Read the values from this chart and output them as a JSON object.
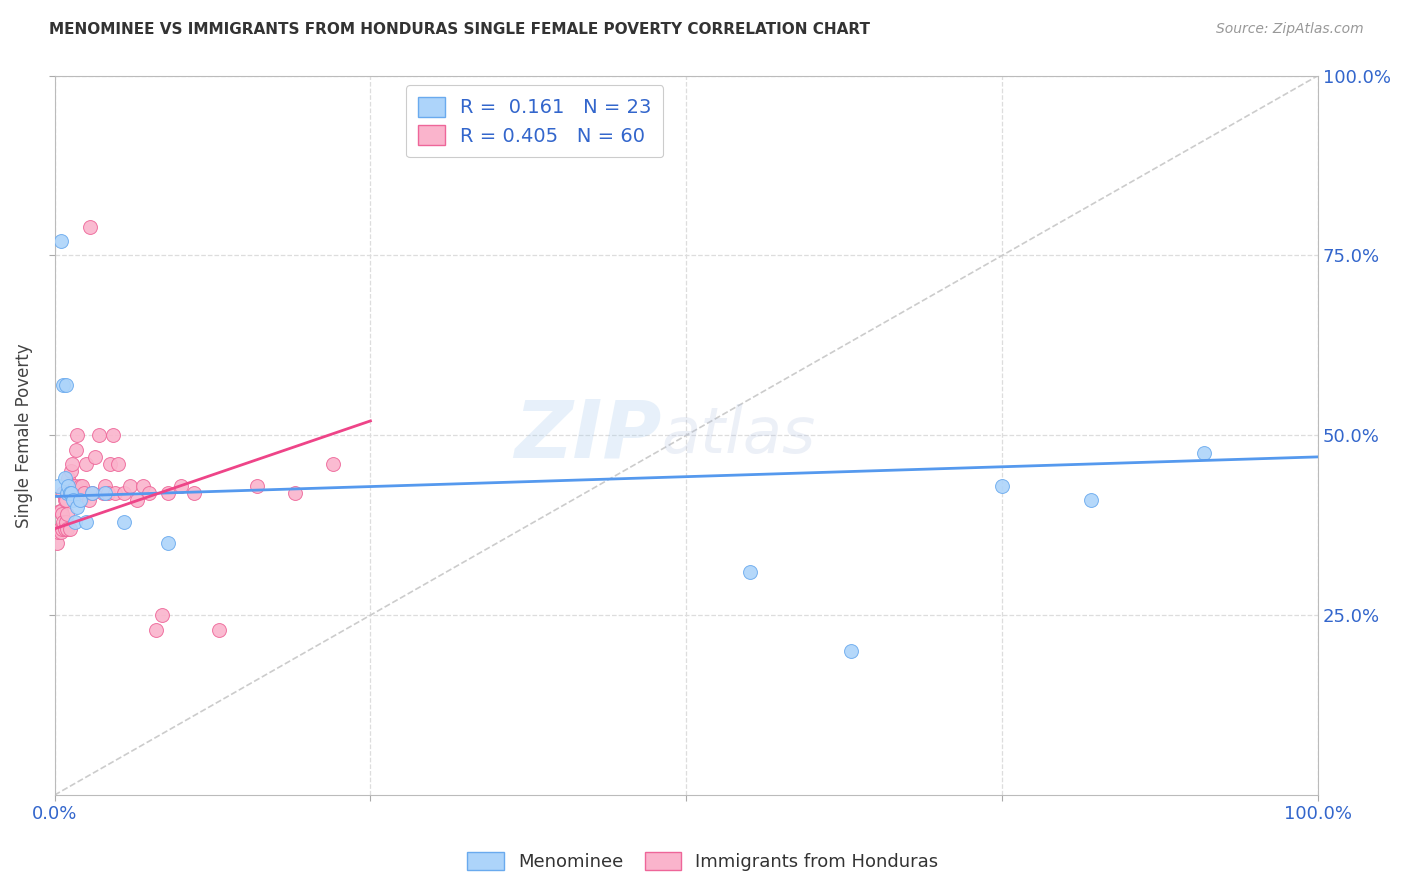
{
  "title": "MENOMINEE VS IMMIGRANTS FROM HONDURAS SINGLE FEMALE POVERTY CORRELATION CHART",
  "source": "Source: ZipAtlas.com",
  "ylabel_left": "Single Female Poverty",
  "legend_blue_R": "0.161",
  "legend_blue_N": "23",
  "legend_pink_R": "0.405",
  "legend_pink_N": "60",
  "legend_label_blue": "Menominee",
  "legend_label_pink": "Immigrants from Honduras",
  "blue_color": "#add4fa",
  "pink_color": "#fab4cc",
  "blue_edge_color": "#6aaaee",
  "pink_edge_color": "#ee6699",
  "blue_line_color": "#5599ee",
  "pink_line_color": "#ee4488",
  "diagonal_color": "#cccccc",
  "watermark_zip": "ZIP",
  "watermark_atlas": "atlas",
  "grid_color": "#dddddd",
  "blue_points_x": [
    0.003,
    0.005,
    0.007,
    0.008,
    0.009,
    0.01,
    0.011,
    0.012,
    0.013,
    0.015,
    0.016,
    0.018,
    0.02,
    0.025,
    0.03,
    0.04,
    0.055,
    0.09,
    0.55,
    0.63,
    0.75,
    0.82,
    0.91
  ],
  "blue_points_y": [
    0.43,
    0.77,
    0.57,
    0.44,
    0.57,
    0.42,
    0.43,
    0.42,
    0.42,
    0.41,
    0.38,
    0.4,
    0.41,
    0.38,
    0.42,
    0.42,
    0.38,
    0.35,
    0.31,
    0.2,
    0.43,
    0.41,
    0.475
  ],
  "pink_points_x": [
    0.002,
    0.003,
    0.004,
    0.004,
    0.005,
    0.005,
    0.006,
    0.006,
    0.007,
    0.007,
    0.008,
    0.008,
    0.009,
    0.009,
    0.01,
    0.01,
    0.011,
    0.011,
    0.012,
    0.012,
    0.013,
    0.013,
    0.014,
    0.014,
    0.015,
    0.016,
    0.017,
    0.018,
    0.019,
    0.02,
    0.021,
    0.022,
    0.023,
    0.025,
    0.027,
    0.028,
    0.03,
    0.032,
    0.035,
    0.038,
    0.04,
    0.042,
    0.044,
    0.046,
    0.048,
    0.05,
    0.055,
    0.06,
    0.065,
    0.07,
    0.075,
    0.08,
    0.085,
    0.09,
    0.1,
    0.11,
    0.13,
    0.16,
    0.19,
    0.22
  ],
  "pink_points_y": [
    0.35,
    0.365,
    0.37,
    0.395,
    0.365,
    0.395,
    0.37,
    0.39,
    0.38,
    0.42,
    0.37,
    0.41,
    0.38,
    0.41,
    0.37,
    0.39,
    0.42,
    0.44,
    0.37,
    0.43,
    0.42,
    0.45,
    0.43,
    0.46,
    0.42,
    0.43,
    0.48,
    0.5,
    0.42,
    0.43,
    0.41,
    0.43,
    0.42,
    0.46,
    0.41,
    0.79,
    0.42,
    0.47,
    0.5,
    0.42,
    0.43,
    0.42,
    0.46,
    0.5,
    0.42,
    0.46,
    0.42,
    0.43,
    0.41,
    0.43,
    0.42,
    0.23,
    0.25,
    0.42,
    0.43,
    0.42,
    0.23,
    0.43,
    0.42,
    0.46
  ],
  "blue_trendline_x": [
    0.0,
    1.0
  ],
  "blue_trendline_y": [
    0.415,
    0.47
  ],
  "pink_trendline_x": [
    0.0,
    0.25
  ],
  "pink_trendline_y": [
    0.37,
    0.52
  ],
  "xlim": [
    0.0,
    1.0
  ],
  "ylim": [
    0.0,
    1.0
  ],
  "xtick_positions": [
    0.0,
    0.25,
    0.5,
    0.75,
    1.0
  ],
  "xtick_labels": [
    "0.0%",
    "",
    "",
    "",
    "100.0%"
  ],
  "ytick_positions": [
    0.25,
    0.5,
    0.75,
    1.0
  ],
  "ytick_labels": [
    "25.0%",
    "50.0%",
    "75.0%",
    "100.0%"
  ]
}
